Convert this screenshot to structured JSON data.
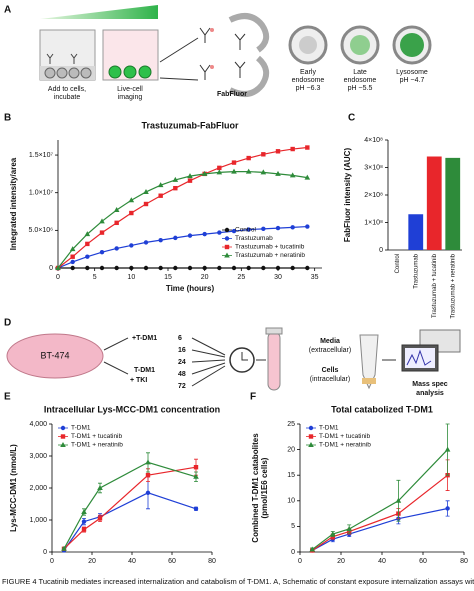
{
  "panel_a": {
    "letter": "A",
    "well_1_label": [
      "Add to cells,",
      "incubate"
    ],
    "well_2_label": [
      "Live-cell",
      "imaging"
    ],
    "reagent": "FabFluor",
    "compartments": [
      [
        "Early",
        "endosome",
        "pH ~6.3"
      ],
      [
        "Late",
        "endosome",
        "pH ~5.5"
      ],
      [
        "Lysosome",
        "pH ~4.7"
      ]
    ]
  },
  "panel_d": {
    "letter": "D",
    "cell_line": "BT-474",
    "treatments": [
      "+T-DM1",
      "T-DM1",
      "+ TKI"
    ],
    "timepoints": [
      "6",
      "16",
      "24",
      "48",
      "72"
    ],
    "fractions": [
      [
        "Media",
        "(extracellular)"
      ],
      [
        "Cells",
        "(intracellular)"
      ]
    ],
    "analysis": [
      "Mass spec",
      "analysis"
    ]
  },
  "caption": "FIGURE 4 Tucatinib mediates increased internalization and catabolism of T-DM1. A, Schematic of constant exposure internalization assays with",
  "chart_data": [
    {
      "type": "line",
      "panel": "B",
      "title": "Trastuzumab-FabFluor",
      "xlabel": "Time (hours)",
      "ylabel": "Integrated intensity/area",
      "x": [
        0,
        2,
        4,
        6,
        8,
        10,
        12,
        14,
        16,
        18,
        20,
        22,
        24,
        26,
        28,
        30,
        32,
        34
      ],
      "xlim": [
        0,
        36
      ],
      "xticks": [
        0,
        5,
        10,
        15,
        20,
        25,
        30,
        35
      ],
      "ylim": [
        0,
        17000000
      ],
      "yticks": [
        0,
        {
          "value": 5000000,
          "label": "5.0×10⁶"
        },
        {
          "value": 10000000,
          "label": "1.0×10⁷"
        },
        {
          "value": 15000000,
          "label": "1.5×10⁷"
        }
      ],
      "legend": "lower right",
      "series": [
        {
          "name": "Control",
          "color": "#111111",
          "marker": "circle",
          "values": [
            0,
            0,
            0,
            0,
            0,
            0,
            0,
            0,
            0,
            0,
            0,
            0,
            0,
            0,
            0,
            0,
            0,
            0
          ]
        },
        {
          "name": "Trastuzumab",
          "color": "#1f3fd6",
          "marker": "circle",
          "values": [
            0,
            800000,
            1500000,
            2100000,
            2600000,
            3000000,
            3400000,
            3700000,
            4000000,
            4300000,
            4500000,
            4700000,
            4900000,
            5100000,
            5200000,
            5300000,
            5400000,
            5500000
          ]
        },
        {
          "name": "Trastuzumab + tucatinib",
          "color": "#e8262b",
          "marker": "square",
          "values": [
            0,
            1500000,
            3200000,
            4700000,
            6000000,
            7300000,
            8500000,
            9600000,
            10600000,
            11600000,
            12500000,
            13300000,
            14000000,
            14600000,
            15100000,
            15500000,
            15800000,
            16000000
          ]
        },
        {
          "name": "Trastuzumab + neratinib",
          "color": "#2e8b3a",
          "marker": "triangle",
          "values": [
            0,
            2500000,
            4500000,
            6200000,
            7700000,
            9000000,
            10100000,
            11000000,
            11700000,
            12200000,
            12500000,
            12700000,
            12800000,
            12800000,
            12700000,
            12500000,
            12300000,
            12000000
          ]
        }
      ]
    },
    {
      "type": "bar",
      "panel": "C",
      "ylabel": "FabFluor intensity (AUC)",
      "categories": [
        "Control",
        "Trastuzumab",
        "Trastuzumab + tucatinib",
        "Trastuzumab + neratinib"
      ],
      "values": [
        0,
        130000000,
        340000000,
        335000000
      ],
      "colors": [
        "#1f3fd6",
        "#1f3fd6",
        "#e8262b",
        "#2e8b3a"
      ],
      "ylim": [
        0,
        400000000
      ],
      "yticks": [
        0,
        {
          "value": 100000000,
          "label": "1×10⁸"
        },
        {
          "value": 200000000,
          "label": "2×10⁸"
        },
        {
          "value": 300000000,
          "label": "3×10⁸"
        },
        {
          "value": 400000000,
          "label": "4×10⁸"
        }
      ]
    },
    {
      "type": "line",
      "panel": "E",
      "title": "Intracellular Lys-MCC-DM1 concentration",
      "ylabel": "Lys-MCC-DM1 (nmol/L)",
      "x": [
        6,
        16,
        24,
        48,
        72
      ],
      "xlim": [
        0,
        80
      ],
      "xticks": [
        0,
        20,
        40,
        60,
        80
      ],
      "ylim": [
        0,
        4000
      ],
      "yticks": [
        0,
        {
          "value": 1000,
          "label": "1,000"
        },
        {
          "value": 2000,
          "label": "2,000"
        },
        {
          "value": 3000,
          "label": "3,000"
        },
        {
          "value": 4000,
          "label": "4,000"
        }
      ],
      "legend": "upper left",
      "series": [
        {
          "name": "T-DM1",
          "color": "#1f3fd6",
          "marker": "circle",
          "values": [
            50,
            950,
            1100,
            1850,
            1350
          ],
          "errors": [
            30,
            100,
            100,
            500,
            50
          ]
        },
        {
          "name": "T-DM1 + tucatinib",
          "color": "#e8262b",
          "marker": "square",
          "values": [
            100,
            700,
            1050,
            2400,
            2650
          ],
          "errors": [
            30,
            80,
            100,
            200,
            250
          ]
        },
        {
          "name": "T-DM1 + neratinib",
          "color": "#2e8b3a",
          "marker": "triangle",
          "values": [
            100,
            1250,
            2000,
            2800,
            2350
          ],
          "errors": [
            30,
            100,
            150,
            300,
            150
          ]
        }
      ]
    },
    {
      "type": "line",
      "panel": "F",
      "title": "Total catabolized T-DM1",
      "ylabel": [
        "Combined T-DM1 catabolites",
        "(pmol/1E6 cells)"
      ],
      "x": [
        6,
        16,
        24,
        48,
        72
      ],
      "xlim": [
        0,
        80
      ],
      "xticks": [
        0,
        20,
        40,
        60,
        80
      ],
      "ylim": [
        0,
        25
      ],
      "yticks": [
        0,
        5,
        10,
        15,
        20,
        25
      ],
      "legend": "upper left",
      "series": [
        {
          "name": "T-DM1",
          "color": "#1f3fd6",
          "marker": "circle",
          "values": [
            0.3,
            2.5,
            3.5,
            6.5,
            8.5
          ],
          "errors": [
            0.3,
            0.5,
            0.5,
            1,
            1.5
          ]
        },
        {
          "name": "T-DM1 + tucatinib",
          "color": "#e8262b",
          "marker": "square",
          "values": [
            0.3,
            3,
            4,
            7.5,
            15
          ],
          "errors": [
            0.3,
            0.5,
            0.5,
            1,
            3
          ]
        },
        {
          "name": "T-DM1 + neratinib",
          "color": "#2e8b3a",
          "marker": "triangle",
          "values": [
            0.5,
            3.5,
            4.5,
            10,
            20
          ],
          "errors": [
            0.3,
            0.5,
            0.8,
            4,
            5
          ]
        }
      ]
    }
  ]
}
